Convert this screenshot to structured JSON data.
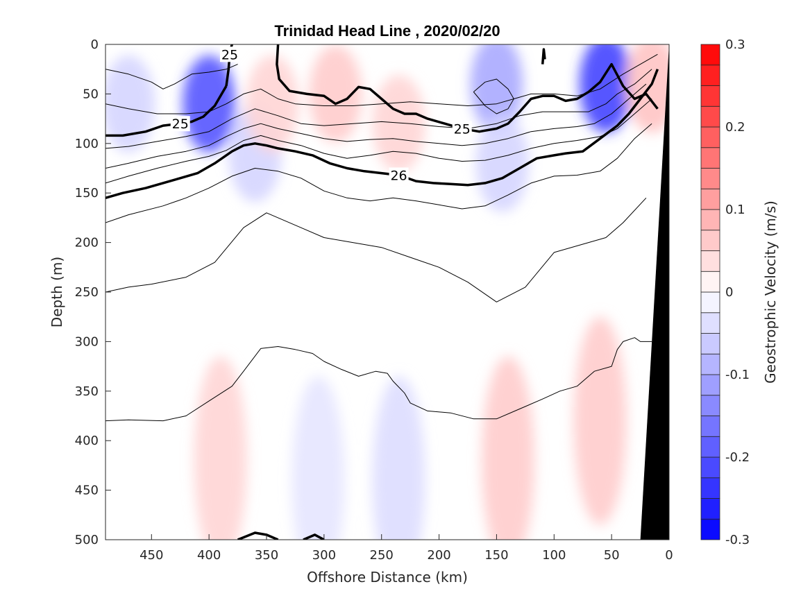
{
  "chart_data": {
    "type": "contour",
    "title": "Trinidad Head Line , 2020/02/20",
    "xlabel": "Offshore Distance (km)",
    "ylabel": "Depth (m)",
    "colorbar_label": "Geostrophic Velocity (m/s)",
    "xlim": [
      490,
      0
    ],
    "x_reversed": true,
    "ylim": [
      0,
      500
    ],
    "y_reversed": true,
    "xticks": [
      450,
      400,
      350,
      300,
      250,
      200,
      150,
      100,
      50,
      0
    ],
    "yticks": [
      0,
      50,
      100,
      150,
      200,
      250,
      300,
      350,
      400,
      450,
      500
    ],
    "colorbar_ticks": [
      0.3,
      0.2,
      0.1,
      0,
      -0.1,
      -0.2,
      -0.3
    ],
    "colorbar_range": [
      -0.3,
      0.3
    ],
    "colorbar_step": 0.025,
    "colormap": {
      "negative": "#0000ff",
      "zero": "#ffffff",
      "positive": "#ff0000"
    },
    "velocity_patches": [
      {
        "x": 470,
        "depth": 60,
        "value": -0.05
      },
      {
        "x": 400,
        "depth": 60,
        "value": -0.2
      },
      {
        "x": 360,
        "depth": 110,
        "value": -0.05
      },
      {
        "x": 345,
        "depth": 60,
        "value": 0.05
      },
      {
        "x": 290,
        "depth": 50,
        "value": 0.06
      },
      {
        "x": 235,
        "depth": 80,
        "value": 0.05
      },
      {
        "x": 150,
        "depth": 40,
        "value": -0.1
      },
      {
        "x": 145,
        "depth": 120,
        "value": -0.05
      },
      {
        "x": 55,
        "depth": 40,
        "value": -0.22
      },
      {
        "x": 15,
        "depth": 40,
        "value": 0.07
      },
      {
        "x": 390,
        "depth": 420,
        "value": 0.05
      },
      {
        "x": 305,
        "depth": 440,
        "value": -0.03
      },
      {
        "x": 235,
        "depth": 440,
        "value": -0.04
      },
      {
        "x": 140,
        "depth": 420,
        "value": 0.06
      },
      {
        "x": 60,
        "depth": 380,
        "value": 0.06
      }
    ],
    "density_contours": [
      {
        "label": "25",
        "bold": true,
        "x": [
          490,
          475,
          455,
          440,
          425,
          415,
          405,
          395,
          385
        ],
        "depth": [
          92,
          92,
          88,
          82,
          80,
          78,
          73,
          62,
          42
        ]
      },
      {
        "label": "25",
        "bold": true,
        "x": [
          385,
          383,
          382,
          381,
          380
        ],
        "depth": [
          42,
          25,
          10,
          4,
          0
        ]
      },
      {
        "label": "25",
        "bold": true,
        "x": [
          340,
          341,
          339,
          330,
          315,
          300,
          290,
          280,
          270,
          260,
          250,
          240,
          230,
          220,
          210,
          195,
          180,
          165,
          150,
          140,
          130,
          120,
          110,
          100,
          90,
          80,
          70,
          60,
          50,
          40,
          30,
          20,
          10
        ],
        "depth": [
          0,
          20,
          35,
          47,
          50,
          52,
          60,
          55,
          43,
          45,
          55,
          65,
          70,
          70,
          75,
          80,
          85,
          88,
          85,
          80,
          68,
          55,
          52,
          52,
          57,
          55,
          48,
          38,
          20,
          42,
          55,
          50,
          65
        ]
      },
      {
        "label": "",
        "bold": true,
        "x": [
          110,
          109,
          108
        ],
        "depth": [
          20,
          5,
          15
        ]
      },
      {
        "label": "26",
        "bold": true,
        "x": [
          490,
          475,
          455,
          440,
          425,
          410,
          395,
          380,
          370,
          360,
          350,
          340,
          325,
          310,
          295,
          280,
          265,
          250,
          235,
          220,
          205,
          190,
          175,
          160,
          145,
          130,
          115,
          100,
          90,
          75,
          60,
          45,
          35,
          25,
          15,
          10
        ],
        "depth": [
          155,
          150,
          145,
          140,
          135,
          130,
          120,
          108,
          102,
          100,
          102,
          105,
          108,
          112,
          120,
          125,
          128,
          130,
          132,
          138,
          140,
          141,
          142,
          140,
          135,
          125,
          115,
          112,
          110,
          108,
          95,
          82,
          70,
          55,
          40,
          25
        ]
      },
      {
        "label": "",
        "bold": true,
        "x": [
          375,
          360,
          350,
          340
        ],
        "depth": [
          500,
          493,
          495,
          500
        ]
      },
      {
        "label": "",
        "bold": true,
        "x": [
          318,
          308,
          300
        ],
        "depth": [
          500,
          495,
          500
        ]
      },
      {
        "label": "",
        "bold": false,
        "x": [
          490,
          470,
          450,
          440,
          430,
          415,
          400,
          385,
          375
        ],
        "depth": [
          25,
          30,
          38,
          45,
          40,
          30,
          28,
          25,
          20
        ]
      },
      {
        "label": "",
        "bold": false,
        "x": [
          490,
          470,
          445,
          420,
          400,
          385,
          370,
          355,
          340,
          325,
          300,
          275,
          250,
          225,
          200,
          175,
          150,
          135,
          120,
          100,
          80,
          60,
          40,
          25,
          10
        ],
        "depth": [
          60,
          65,
          70,
          70,
          68,
          60,
          50,
          45,
          55,
          60,
          62,
          62,
          60,
          58,
          60,
          62,
          60,
          55,
          50,
          50,
          52,
          45,
          30,
          20,
          10
        ]
      },
      {
        "label": "",
        "bold": false,
        "x": [
          490,
          470,
          445,
          420,
          400,
          380,
          360,
          340,
          320,
          300,
          275,
          250,
          225,
          200,
          175,
          150,
          130,
          110,
          90,
          70,
          55,
          45,
          30,
          15
        ],
        "depth": [
          105,
          103,
          98,
          93,
          88,
          75,
          65,
          72,
          80,
          82,
          80,
          78,
          80,
          83,
          85,
          80,
          72,
          68,
          68,
          68,
          60,
          50,
          40,
          25
        ]
      },
      {
        "label": "",
        "bold": false,
        "x": [
          490,
          470,
          445,
          420,
          400,
          385,
          370,
          355,
          340,
          320,
          300,
          280,
          260,
          240,
          220,
          200,
          180,
          160,
          140,
          120,
          100,
          80,
          65,
          50,
          35,
          20
        ],
        "depth": [
          125,
          120,
          113,
          108,
          102,
          93,
          85,
          80,
          85,
          90,
          95,
          98,
          96,
          95,
          98,
          100,
          102,
          100,
          95,
          88,
          85,
          83,
          80,
          70,
          55,
          40
        ]
      },
      {
        "label": "",
        "bold": false,
        "x": [
          490,
          470,
          445,
          420,
          400,
          385,
          370,
          355,
          340,
          320,
          300,
          280,
          260,
          240,
          220,
          200,
          180,
          160,
          140,
          120,
          100,
          80,
          60,
          45,
          30,
          15
        ],
        "depth": [
          140,
          133,
          125,
          118,
          113,
          107,
          97,
          92,
          97,
          102,
          110,
          115,
          112,
          108,
          110,
          115,
          118,
          117,
          112,
          105,
          100,
          97,
          93,
          85,
          70,
          55
        ]
      },
      {
        "label": "",
        "bold": false,
        "x": [
          490,
          470,
          440,
          420,
          400,
          380,
          360,
          340,
          320,
          300,
          280,
          260,
          240,
          220,
          200,
          180,
          160,
          140,
          120,
          100,
          80,
          60,
          45,
          30,
          15
        ],
        "depth": [
          180,
          172,
          163,
          155,
          145,
          133,
          125,
          128,
          135,
          148,
          155,
          158,
          155,
          158,
          162,
          166,
          163,
          152,
          140,
          133,
          132,
          128,
          115,
          95,
          80
        ]
      },
      {
        "label": "",
        "bold": false,
        "x": [
          490,
          470,
          450,
          420,
          395,
          370,
          350,
          320,
          300,
          275,
          250,
          225,
          200,
          175,
          150,
          125,
          100,
          70,
          55,
          40,
          20
        ],
        "depth": [
          250,
          245,
          242,
          235,
          220,
          185,
          170,
          185,
          195,
          200,
          205,
          215,
          225,
          240,
          260,
          245,
          210,
          200,
          195,
          180,
          155
        ]
      },
      {
        "label": "",
        "bold": false,
        "x": [
          490,
          470,
          440,
          420,
          400,
          380,
          370,
          355,
          340,
          325,
          310,
          300,
          285,
          270,
          255,
          245,
          240,
          230,
          225,
          210,
          190,
          170,
          150,
          130,
          110,
          95,
          80,
          65,
          50,
          45,
          40,
          30,
          25,
          15
        ],
        "depth": [
          380,
          379,
          380,
          375,
          360,
          345,
          330,
          307,
          305,
          308,
          312,
          320,
          328,
          335,
          330,
          332,
          340,
          352,
          362,
          370,
          372,
          378,
          378,
          368,
          358,
          350,
          345,
          330,
          325,
          308,
          300,
          296,
          300,
          300
        ]
      },
      {
        "label": "",
        "bold": false,
        "x": [
          170,
          160,
          150,
          140,
          135,
          140,
          150,
          160,
          170
        ],
        "depth": [
          48,
          38,
          35,
          45,
          55,
          65,
          70,
          62,
          48
        ]
      }
    ],
    "bathymetry": {
      "x": [
        25,
        0,
        0,
        25
      ],
      "depth": [
        500,
        0,
        500,
        500
      ],
      "color": "#000000"
    }
  }
}
